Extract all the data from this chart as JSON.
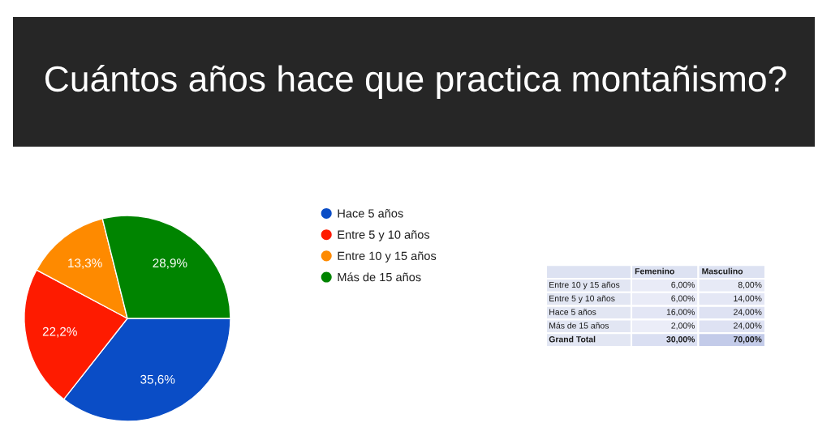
{
  "chart_data": [
    {
      "type": "pie",
      "title": "Cuántos años hace que practica montañismo?",
      "categories": [
        "Hace 5 años",
        "Entre 5 y 10 años",
        "Entre 10 y 15 años",
        "Más de 15 años"
      ],
      "values": [
        35.6,
        22.2,
        13.3,
        28.9
      ],
      "colors": [
        "#0a4dc6",
        "#fe1b00",
        "#fe8a00",
        "#008400"
      ],
      "value_labels": [
        "35,6%",
        "22,2%",
        "13,3%",
        "28,9%"
      ],
      "legend": "right"
    },
    {
      "type": "heatmap",
      "categories": [
        "Femenino",
        "Masculino"
      ],
      "y_categories": [
        "Entre 10 y 15 años",
        "Entre 5 y 10 años",
        "Hace 5 años",
        "Más de 15 años",
        "Grand Total"
      ],
      "cells": [
        [
          6,
          8
        ],
        [
          6,
          14
        ],
        [
          16,
          24
        ],
        [
          2,
          24
        ],
        [
          30,
          70
        ]
      ],
      "cell_labels": [
        [
          "6,00%",
          "8,00%"
        ],
        [
          "6,00%",
          "14,00%"
        ],
        [
          "16,00%",
          "24,00%"
        ],
        [
          "2,00%",
          "24,00%"
        ],
        [
          "30,00%",
          "70,00%"
        ]
      ]
    }
  ]
}
